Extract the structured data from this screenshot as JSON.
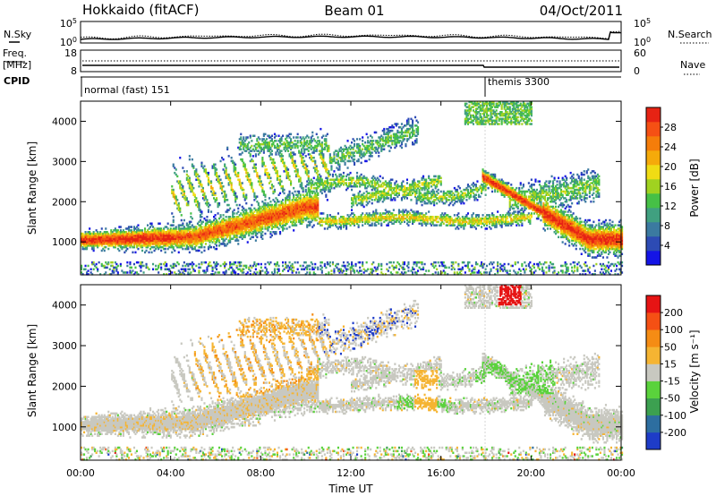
{
  "header": {
    "station": "Hokkaido (fitACF)",
    "beam": "Beam 01",
    "date": "04/Oct/2011"
  },
  "panels": {
    "nsky_label": "N.Sky",
    "nsearch_label": "N.Search",
    "freq_label_1": "Freq.",
    "freq_label_2": "[MHz]",
    "nave_label": "Nave",
    "cpid_label": "CPID",
    "noise_left_ticks": [
      {
        "base": "10",
        "exp": "5"
      },
      {
        "base": "10",
        "exp": "0"
      }
    ],
    "noise_right_ticks": [
      {
        "base": "10",
        "exp": "5"
      },
      {
        "base": "10",
        "exp": "0"
      }
    ],
    "freq_left_ticks": [
      "18",
      "8"
    ],
    "freq_right_ticks": [
      "60",
      "0"
    ],
    "cpid_entries": [
      {
        "start_hour": 0.0,
        "text": "normal (fast) 151"
      },
      {
        "start_hour": 18.0,
        "text": "themis 3300"
      }
    ]
  },
  "chart_data": [
    {
      "type": "heatmap",
      "name": "power",
      "ylabel": "Slant Range [km]",
      "yticks": [
        1000,
        2000,
        3000,
        4000
      ],
      "ylim": [
        180,
        4500
      ],
      "xlim": [
        0,
        24
      ],
      "colorbar": {
        "label": "Power [dB]",
        "ticks": [
          "4",
          "8",
          "12",
          "16",
          "20",
          "24",
          "28"
        ],
        "colors": [
          "#1414e6",
          "#2d4bb4",
          "#3b7aa0",
          "#40a080",
          "#46c046",
          "#a0d220",
          "#f0dc14",
          "#f5aa0a",
          "#f57d0a",
          "#f55014",
          "#e62314"
        ]
      }
    },
    {
      "type": "heatmap",
      "name": "velocity",
      "ylabel": "Slant Range [km]",
      "yticks": [
        1000,
        2000,
        3000,
        4000
      ],
      "ylim": [
        180,
        4500
      ],
      "xlim": [
        0,
        24
      ],
      "xlabel": "Time UT",
      "xticks": [
        "00:00",
        "04:00",
        "08:00",
        "12:00",
        "16:00",
        "20:00",
        "00:00"
      ],
      "colorbar": {
        "label": "Velocity [m s⁻¹]",
        "ticks": [
          "200",
          "100",
          "50",
          "15",
          "-15",
          "-50",
          "-100",
          "-200"
        ],
        "colors": [
          "#1e3cc8",
          "#2d6ea0",
          "#3ca050",
          "#5ad23c",
          "#c8c8c0",
          "#f5b432",
          "#f58c14",
          "#f55014",
          "#e61414"
        ]
      }
    }
  ]
}
